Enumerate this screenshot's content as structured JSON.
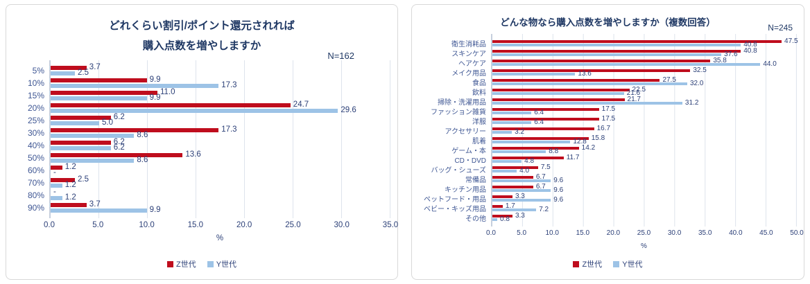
{
  "page": {
    "background": "#ffffff"
  },
  "colors": {
    "z_series": "#bf0d1d",
    "y_series": "#9dc3e6",
    "title_navy": "#1f3864",
    "label_navy": "#2b3f77",
    "category_blue": "#3e5693"
  },
  "chart_data": [
    {
      "type": "bar",
      "orientation": "horizontal",
      "title_lines": [
        "どれくらい割引/ポイント還元されれば",
        "購入点数を増やしますか"
      ],
      "n_label": "N=162",
      "xlabel": "%",
      "x_max": 35,
      "x_ticks": [
        "0.0",
        "5.0",
        "10.0",
        "15.0",
        "20.0",
        "25.0",
        "30.0",
        "35.0"
      ],
      "grid": true,
      "legend_position": "bottom",
      "categories": [
        "5%",
        "10%",
        "15%",
        "20%",
        "25%",
        "30%",
        "40%",
        "50%",
        "60%",
        "70%",
        "80%",
        "90%"
      ],
      "series": [
        {
          "name": "Z世代",
          "color": "#bf0d1d",
          "values": [
            3.7,
            9.9,
            11.0,
            24.7,
            6.2,
            17.3,
            6.2,
            13.6,
            1.2,
            2.5,
            0,
            3.7
          ],
          "labels": [
            "3.7",
            "9.9",
            "11.0",
            "24.7",
            "6.2",
            "17.3",
            "6.2",
            "13.6",
            "1.2",
            "2.5",
            "-",
            "3.7"
          ]
        },
        {
          "name": "Y世代",
          "color": "#9dc3e6",
          "values": [
            2.5,
            17.3,
            9.9,
            29.6,
            5.0,
            8.6,
            6.2,
            8.6,
            0,
            1.2,
            1.2,
            9.9
          ],
          "labels": [
            "2.5",
            "17.3",
            "9.9",
            "29.6",
            "5.0",
            "8.6",
            "6.2",
            "8.6",
            "-",
            "1.2",
            "1.2",
            "9.9"
          ]
        }
      ]
    },
    {
      "type": "bar",
      "orientation": "horizontal",
      "title_lines": [
        "どんな物なら購入点数を増やしますか（複数回答）"
      ],
      "n_label": "N=245",
      "xlabel": "%",
      "x_max": 50,
      "x_ticks": [
        "0.0",
        "5.0",
        "10.0",
        "15.0",
        "20.0",
        "25.0",
        "30.0",
        "35.0",
        "40.0",
        "45.0",
        "50.0"
      ],
      "grid": true,
      "legend_position": "bottom",
      "categories": [
        "衛生消耗品",
        "スキンケア",
        "ヘアケア",
        "メイク用品",
        "食品",
        "飲料",
        "掃除・洗濯用品",
        "ファッション雑貨",
        "洋服",
        "アクセサリー",
        "肌着",
        "ゲーム・本",
        "CD・DVD",
        "バッグ・シューズ",
        "常備品",
        "キッチン用品",
        "ペットフード・用品",
        "ベビー・キッズ用品",
        "その他"
      ],
      "series": [
        {
          "name": "Z世代",
          "color": "#bf0d1d",
          "values": [
            47.5,
            40.8,
            35.8,
            32.5,
            27.5,
            22.5,
            21.7,
            17.5,
            17.5,
            16.7,
            15.8,
            14.2,
            11.7,
            7.5,
            6.7,
            6.7,
            3.3,
            1.7,
            3.3
          ],
          "labels": [
            "47.5",
            "40.8",
            "35.8",
            "32.5",
            "27.5",
            "22.5",
            "21.7",
            "17.5",
            "17.5",
            "16.7",
            "15.8",
            "14.2",
            "11.7",
            "7.5",
            "6.7",
            "6.7",
            "3.3",
            "1.7",
            "3.3"
          ]
        },
        {
          "name": "Y世代",
          "color": "#9dc3e6",
          "values": [
            40.8,
            37.6,
            44.0,
            13.6,
            32.0,
            21.6,
            31.2,
            6.4,
            6.4,
            3.2,
            12.8,
            8.8,
            4.8,
            4.0,
            9.6,
            9.6,
            9.6,
            7.2,
            0.8
          ],
          "labels": [
            "40.8",
            "37.6",
            "44.0",
            "13.6",
            "32.0",
            "21.6",
            "31.2",
            "6.4",
            "6.4",
            "3.2",
            "12.8",
            "8.8",
            "4.8",
            "4.0",
            "9.6",
            "9.6",
            "9.6",
            "7.2",
            "0.8"
          ]
        }
      ]
    }
  ]
}
